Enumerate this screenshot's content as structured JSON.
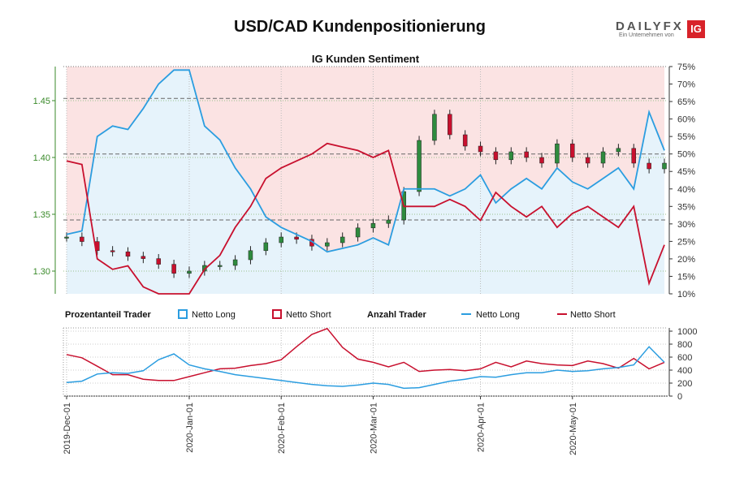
{
  "title": "USD/CAD Kundenpositionierung",
  "logo": {
    "text": "DAILYFX",
    "sub": "Ein Unternehmen von",
    "badge": "IG"
  },
  "colors": {
    "long": "#2b9de0",
    "short": "#c8102e",
    "long_fill": "#e6f3fb",
    "short_fill": "#fbe3e3",
    "candle_up": "#2e8b3e",
    "candle_down": "#c8102e",
    "left_axis": "#3a8a2a"
  },
  "chart_data": [
    {
      "type": "candlestick",
      "title": "IG Kunden Sentiment",
      "y_left": {
        "ticks": [
          1.3,
          1.35,
          1.4,
          1.45
        ],
        "labels": [
          "1.30",
          "1.35",
          "1.40",
          "1.45"
        ],
        "range": [
          1.28,
          1.48
        ]
      },
      "y_right": {
        "ticks": [
          10,
          15,
          20,
          25,
          30,
          35,
          40,
          45,
          50,
          55,
          60,
          65,
          70,
          75
        ],
        "labels": [
          "10%",
          "15%",
          "20%",
          "25%",
          "30%",
          "35%",
          "40%",
          "45%",
          "50%",
          "55%",
          "60%",
          "65%",
          "70%",
          "75%"
        ],
        "range": [
          10,
          75
        ]
      },
      "x_dates": [
        "2019-12-01",
        "2019-12-04",
        "2019-12-09",
        "2019-12-12",
        "2019-12-16",
        "2019-12-20",
        "2019-12-26",
        "2019-12-31",
        "2020-01-06",
        "2020-01-10",
        "2020-01-15",
        "2020-01-20",
        "2020-01-24",
        "2020-01-29",
        "2020-02-03",
        "2020-02-07",
        "2020-02-12",
        "2020-02-17",
        "2020-02-21",
        "2020-02-26",
        "2020-03-02",
        "2020-03-06",
        "2020-03-11",
        "2020-03-16",
        "2020-03-20",
        "2020-03-25",
        "2020-03-30",
        "2020-04-03",
        "2020-04-08",
        "2020-04-13",
        "2020-04-17",
        "2020-04-22",
        "2020-04-27",
        "2020-05-01",
        "2020-05-06",
        "2020-05-11",
        "2020-05-15",
        "2020-05-20",
        "2020-05-25",
        "2020-05-28"
      ],
      "price": [
        1.33,
        1.326,
        1.318,
        1.317,
        1.313,
        1.311,
        1.306,
        1.298,
        1.3,
        1.305,
        1.305,
        1.31,
        1.318,
        1.325,
        1.33,
        1.328,
        1.322,
        1.325,
        1.33,
        1.338,
        1.342,
        1.345,
        1.37,
        1.415,
        1.438,
        1.42,
        1.41,
        1.405,
        1.398,
        1.405,
        1.4,
        1.395,
        1.412,
        1.4,
        1.395,
        1.405,
        1.408,
        1.395,
        1.39,
        1.395
      ],
      "long_pct": [
        27,
        28,
        55,
        58,
        57,
        63,
        70,
        74,
        74,
        58,
        54,
        46,
        40,
        32,
        29,
        27,
        25,
        22,
        23,
        24,
        26,
        24,
        40,
        40,
        40,
        38,
        40,
        44,
        36,
        40,
        43,
        40,
        46,
        42,
        40,
        43,
        46,
        40,
        62,
        51
      ],
      "hlines": [
        1.345,
        1.403,
        1.452
      ]
    },
    {
      "type": "line",
      "legend": {
        "group1": "Prozentanteil Trader",
        "long": "Netto Long",
        "short": "Netto Short",
        "group2": "Anzahl Trader"
      },
      "y": {
        "ticks": [
          0,
          200,
          400,
          600,
          800,
          1000
        ],
        "labels": [
          "0",
          "200",
          "400",
          "600",
          "800",
          "1000"
        ],
        "range": [
          0,
          1050
        ]
      },
      "x_labels": [
        "2019-Dec-01",
        "2020-Jan-01",
        "2020-Feb-01",
        "2020-Mar-01",
        "2020-Apr-01",
        "2020-May-01"
      ],
      "series": [
        {
          "name": "Netto Long",
          "values": [
            210,
            230,
            340,
            360,
            350,
            390,
            560,
            650,
            480,
            420,
            380,
            330,
            300,
            270,
            240,
            210,
            180,
            160,
            150,
            170,
            200,
            180,
            120,
            130,
            180,
            230,
            260,
            300,
            290,
            330,
            360,
            360,
            400,
            380,
            390,
            420,
            440,
            480,
            760,
            520
          ]
        },
        {
          "name": "Netto Short",
          "values": [
            640,
            590,
            460,
            330,
            330,
            260,
            240,
            240,
            300,
            360,
            420,
            430,
            470,
            500,
            560,
            760,
            950,
            1040,
            750,
            570,
            520,
            450,
            520,
            380,
            400,
            410,
            390,
            420,
            520,
            450,
            540,
            500,
            480,
            470,
            540,
            500,
            430,
            580,
            420,
            520
          ]
        }
      ]
    }
  ]
}
